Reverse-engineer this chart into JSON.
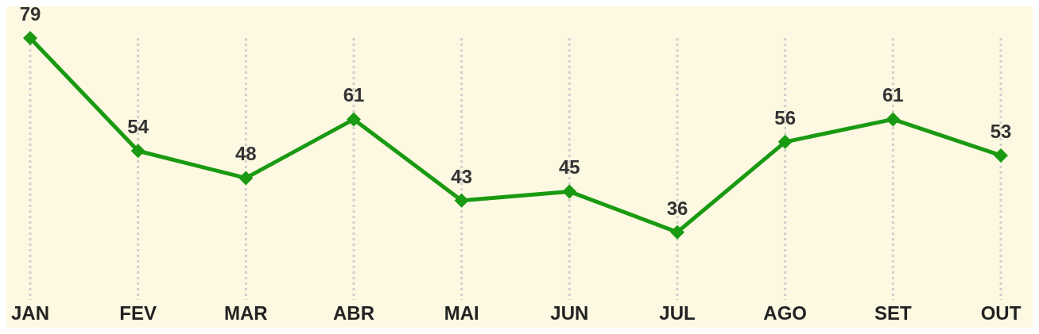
{
  "chart_data": {
    "type": "line",
    "categories": [
      "JAN",
      "FEV",
      "MAR",
      "ABR",
      "MAI",
      "JUN",
      "JUL",
      "AGO",
      "SET",
      "OUT"
    ],
    "series": [
      {
        "color": "#1a9a12",
        "values": [
          79,
          54,
          48,
          61,
          43,
          45,
          36,
          56,
          61,
          53
        ]
      }
    ],
    "data_labels": true,
    "marker": "diamond",
    "grid": "x"
  }
}
